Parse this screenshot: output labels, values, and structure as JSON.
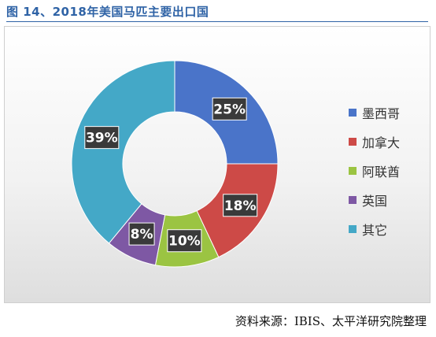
{
  "figure": {
    "title": "图 14、2018年美国马匹主要出口国",
    "source": "资料来源：IBIS、太平洋研究院整理"
  },
  "chart_data": {
    "type": "pie",
    "donut": true,
    "categories": [
      "墨西哥",
      "加拿大",
      "阿联酋",
      "英国",
      "其它"
    ],
    "values": [
      25,
      18,
      10,
      8,
      39
    ],
    "data_labels": [
      "25%",
      "18%",
      "10%",
      "8%",
      "39%"
    ],
    "colors": [
      "#4a74c9",
      "#cd4a47",
      "#9bc442",
      "#7e58a4",
      "#44a8c7"
    ],
    "legend_position": "right",
    "title": ""
  }
}
